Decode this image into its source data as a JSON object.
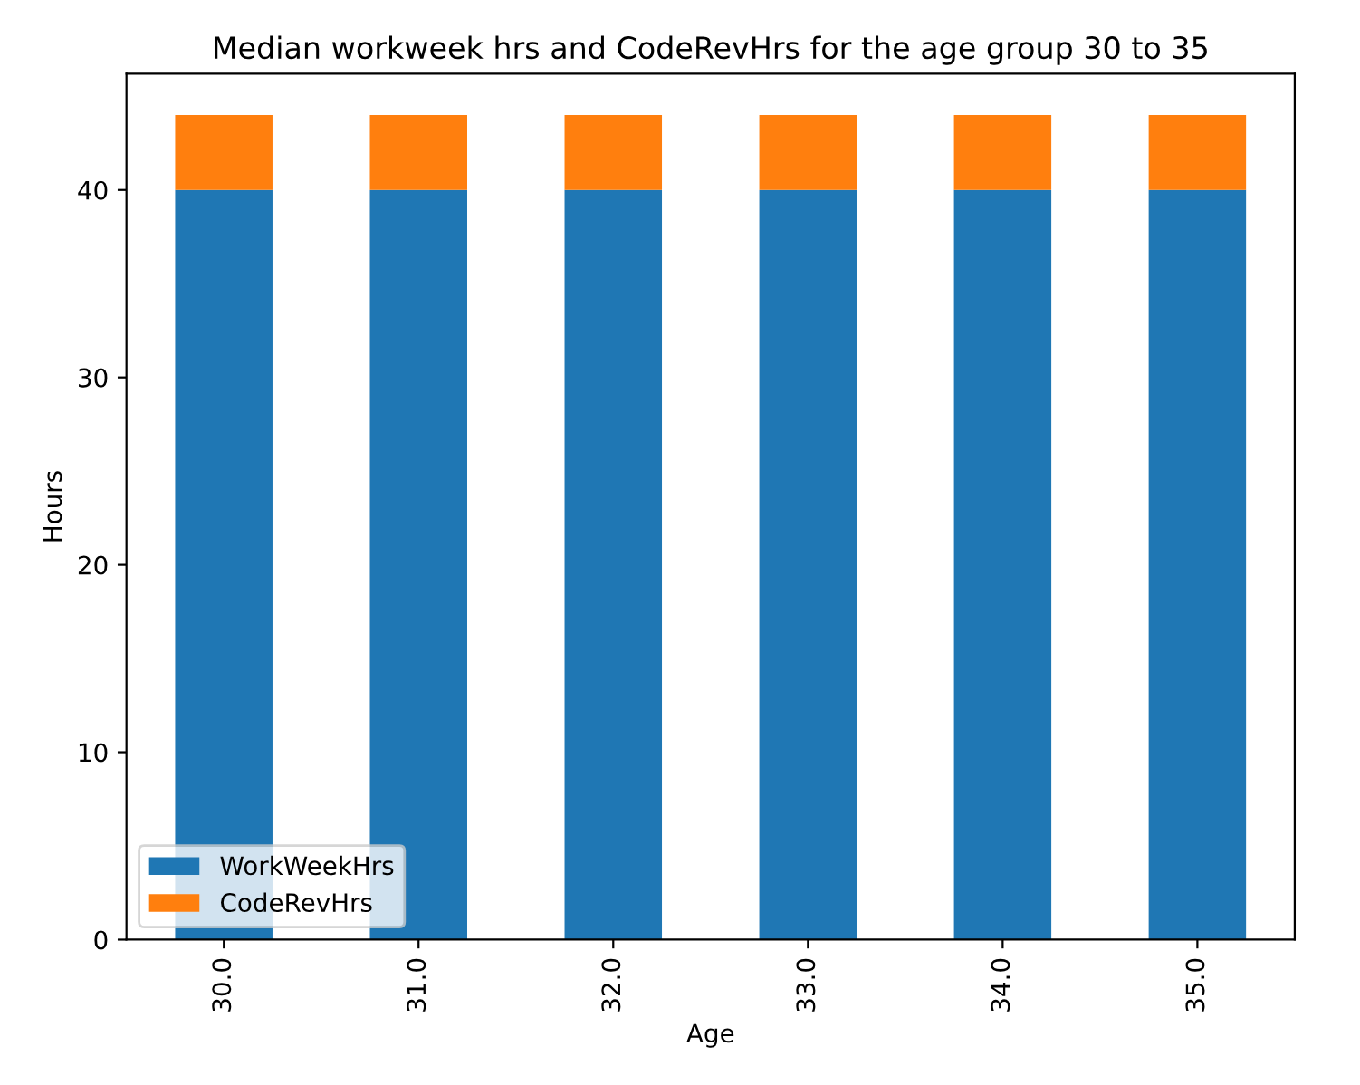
{
  "chart_data": {
    "type": "bar",
    "stacked": true,
    "title": "Median workweek hrs and CodeRevHrs for the age group 30 to 35",
    "xlabel": "Age",
    "ylabel": "Hours",
    "categories": [
      "30.0",
      "31.0",
      "32.0",
      "33.0",
      "34.0",
      "35.0"
    ],
    "series": [
      {
        "name": "WorkWeekHrs",
        "color": "#1f77b4",
        "values": [
          40,
          40,
          40,
          40,
          40,
          40
        ]
      },
      {
        "name": "CodeRevHrs",
        "color": "#ff7f0e",
        "values": [
          4,
          4,
          4,
          4,
          4,
          4
        ]
      }
    ],
    "ylim": [
      0,
      46.2
    ],
    "yticks": [
      0,
      10,
      20,
      30,
      40
    ],
    "legend": "bottom left",
    "grid": false
  }
}
